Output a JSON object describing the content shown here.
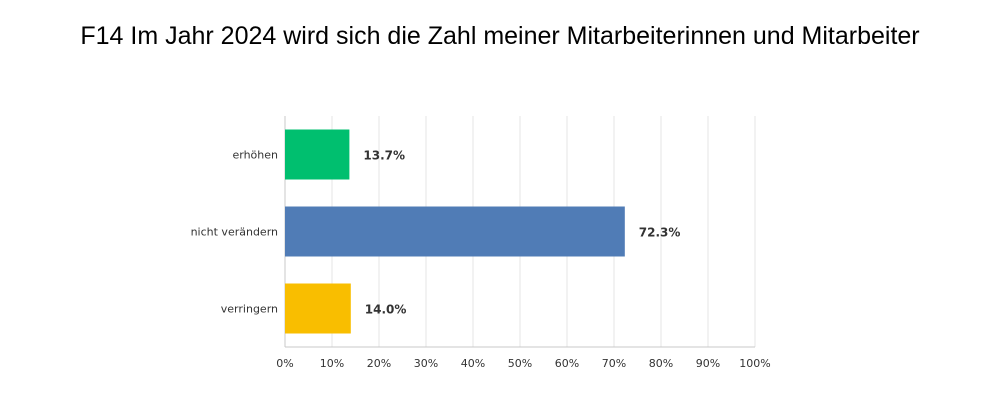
{
  "chart_data": {
    "type": "bar",
    "orientation": "horizontal",
    "title": "F14 Im Jahr 2024 wird sich die Zahl meiner Mitarbeiterinnen und Mitarbeiter",
    "categories": [
      "erhöhen",
      "nicht verändern",
      "verringern"
    ],
    "values": [
      13.7,
      72.3,
      14.0
    ],
    "value_labels": [
      "13.7%",
      "72.3%",
      "14.0%"
    ],
    "colors": [
      "#00bf6f",
      "#507cb6",
      "#f9be00"
    ],
    "xlim": [
      0,
      100
    ],
    "x_ticks": [
      0,
      10,
      20,
      30,
      40,
      50,
      60,
      70,
      80,
      90,
      100
    ],
    "x_tick_labels": [
      "0%",
      "10%",
      "20%",
      "30%",
      "40%",
      "50%",
      "60%",
      "70%",
      "80%",
      "90%",
      "100%"
    ],
    "grid": true,
    "legend": false
  }
}
